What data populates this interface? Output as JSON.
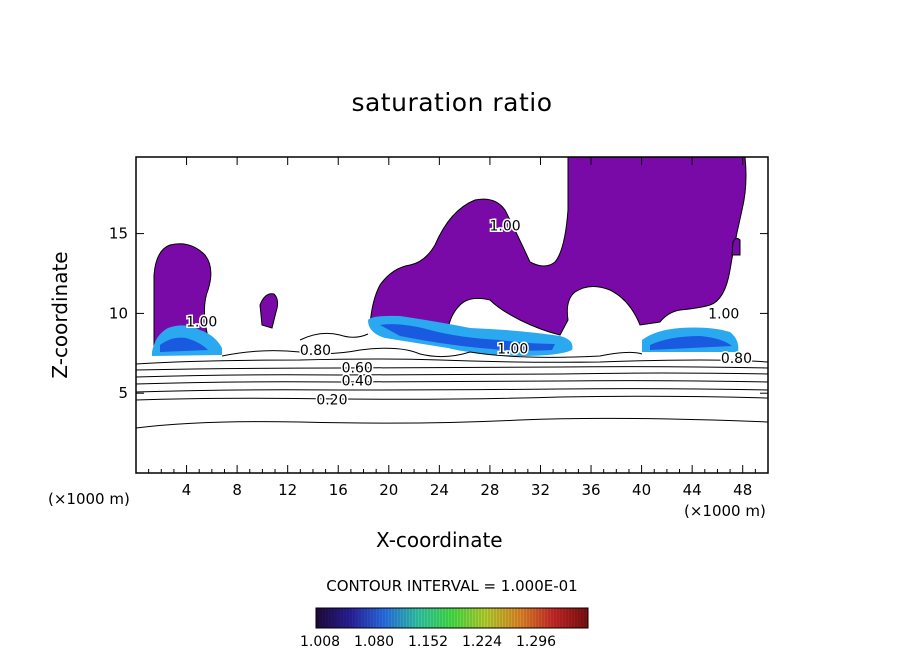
{
  "chart_data": {
    "type": "contour",
    "title": "saturation ratio",
    "xlabel": "X-coordinate",
    "ylabel": "Z-coordinate",
    "x_unit_left": "(×1000 m)",
    "x_unit_right": "(×1000 m)",
    "xlim": [
      0,
      50
    ],
    "ylim": [
      0,
      19.8
    ],
    "x_ticks": [
      4,
      8,
      12,
      16,
      20,
      24,
      28,
      32,
      36,
      40,
      44,
      48
    ],
    "y_ticks": [
      5,
      10,
      15
    ],
    "contour_labels": [
      {
        "text": "0.20",
        "x": 15.5,
        "z": 4.6
      },
      {
        "text": "0.40",
        "x": 17.5,
        "z": 5.8
      },
      {
        "text": "0.60",
        "x": 17.5,
        "z": 6.6
      },
      {
        "text": "0.80",
        "x": 14.2,
        "z": 7.7
      },
      {
        "text": "0.80",
        "x": 47.5,
        "z": 7.2
      },
      {
        "text": "1.00",
        "x": 29.8,
        "z": 7.8
      },
      {
        "text": "1.00",
        "x": 5.2,
        "z": 9.5
      },
      {
        "text": "1.00",
        "x": 29.2,
        "z": 15.5
      },
      {
        "text": "1.00",
        "x": 46.5,
        "z": 10.0
      }
    ],
    "contour_interval": "CONTOUR INTERVAL = 1.000E-01",
    "colorbar": {
      "ticks": [
        "1.008",
        "1.080",
        "1.152",
        "1.224",
        "1.296"
      ],
      "colors": [
        "#200a3a",
        "#2a1f9a",
        "#2a6fe8",
        "#34c8a8",
        "#48e048",
        "#b8d030",
        "#e08828",
        "#c82828",
        "#7a1010"
      ]
    },
    "fill_color": "#7a0aa8",
    "supersat_color": "#2aa8f0"
  }
}
